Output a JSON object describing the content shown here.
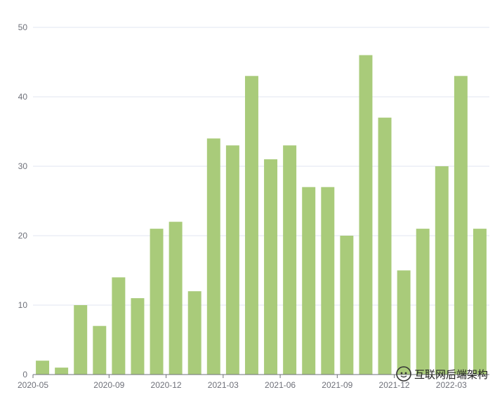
{
  "chart_data": {
    "type": "bar",
    "categories": [
      "2020-05",
      "2020-06",
      "2020-07",
      "2020-08",
      "2020-09",
      "2020-10",
      "2020-11",
      "2020-12",
      "2021-01",
      "2021-02",
      "2021-03",
      "2021-04",
      "2021-05",
      "2021-06",
      "2021-07",
      "2021-08",
      "2021-09",
      "2021-10",
      "2021-11",
      "2021-12",
      "2022-01",
      "2022-02",
      "2022-03",
      "2022-04"
    ],
    "values": [
      2,
      1,
      10,
      7,
      14,
      11,
      21,
      22,
      12,
      34,
      33,
      43,
      31,
      33,
      27,
      27,
      20,
      46,
      37,
      15,
      21,
      30,
      43,
      21
    ],
    "x_tick_labels": [
      "2020-05",
      "2020-09",
      "2020-12",
      "2021-03",
      "2021-06",
      "2021-09",
      "2021-12",
      "2022-03"
    ],
    "y_ticks": [
      0,
      10,
      20,
      30,
      40,
      50
    ],
    "ylim": [
      0,
      50
    ],
    "title": "",
    "xlabel": "",
    "ylabel": "",
    "grid": true,
    "bar_color": "#a9cb7a"
  },
  "watermark": {
    "text": "互联网后端架构",
    "icon": "wechat-icon"
  }
}
